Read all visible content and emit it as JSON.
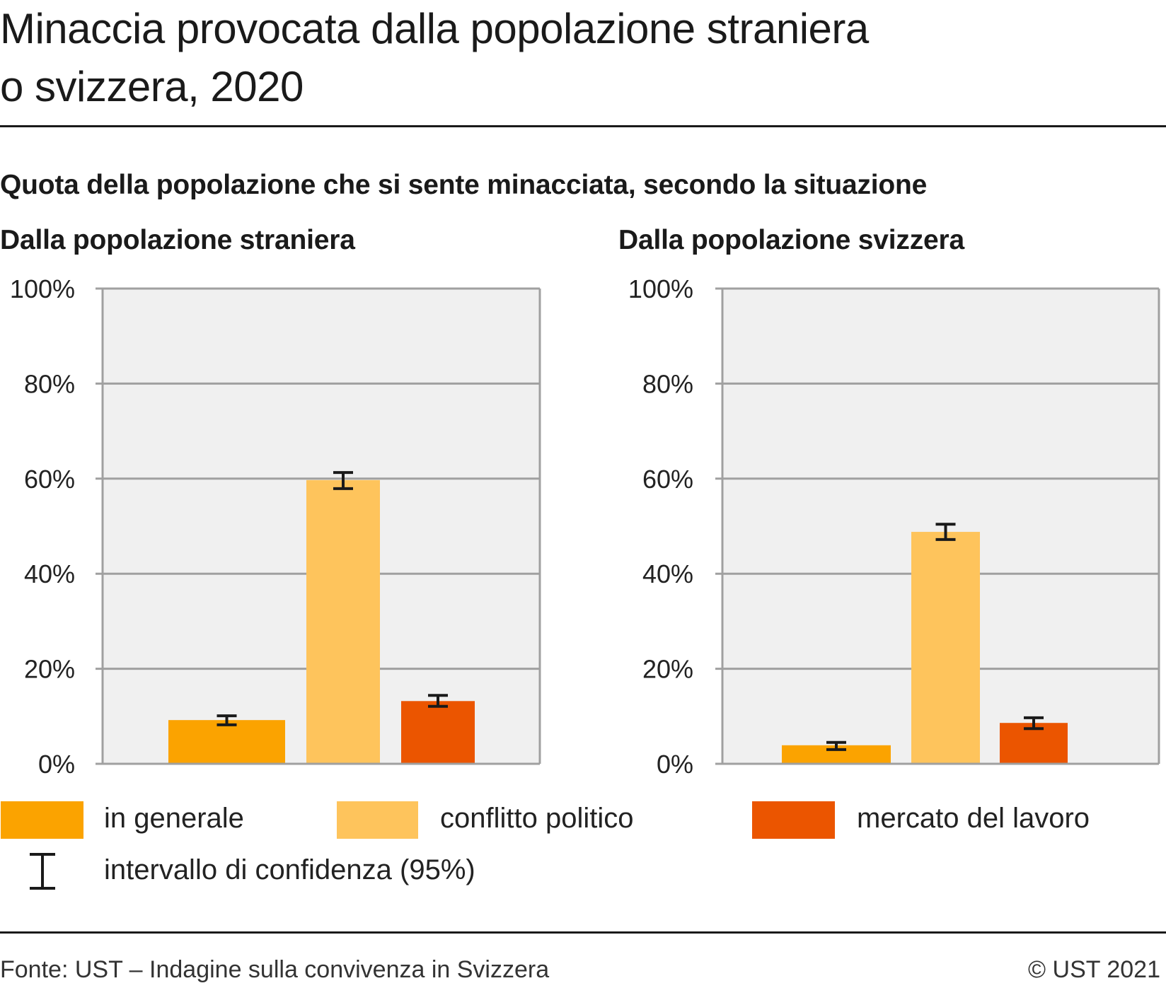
{
  "header": {
    "title_line1": "Minaccia provocata dalla popolazione straniera",
    "title_line2": "o svizzera, 2020",
    "subtitle": "Quota della popolazione che si sente minacciata, secondo la situazione"
  },
  "colors": {
    "in_generale": "#FBA300",
    "conflitto_politico": "#FEC45C",
    "mercato_del_lavoro": "#EB5500",
    "plot_background": "#F0F0F0",
    "grid": "#A0A0A0",
    "error_bar": "#1A1A1A"
  },
  "legend": {
    "items": [
      {
        "label": "in generale",
        "color": "#FBA300"
      },
      {
        "label": "conflitto politico",
        "color": "#FEC45C"
      },
      {
        "label": "mercato del lavoro",
        "color": "#EB5500"
      }
    ],
    "ci_label": "intervallo di confidenza (95%)"
  },
  "footer": {
    "source": "Fonte: UST – Indagine sulla convivenza in Svizzera",
    "copyright": "© UST 2021"
  },
  "chart_data": [
    {
      "type": "bar",
      "title": "Dalla popolazione straniera",
      "categories": [
        "in generale",
        "conflitto politico",
        "mercato del lavoro"
      ],
      "values": [
        9.2,
        59.7,
        13.2
      ],
      "ci_low": [
        8.2,
        57.9,
        12.1
      ],
      "ci_high": [
        10.1,
        61.3,
        14.4
      ],
      "unit": "%",
      "ylim": [
        0,
        100
      ],
      "yticks": [
        0,
        20,
        40,
        60,
        80,
        100
      ],
      "ytick_labels": [
        "0%",
        "20%",
        "40%",
        "60%",
        "80%",
        "100%"
      ],
      "grid": true,
      "xlabel": "",
      "ylabel": ""
    },
    {
      "type": "bar",
      "title": "Dalla popolazione svizzera",
      "categories": [
        "in generale",
        "conflitto politico",
        "mercato del lavoro"
      ],
      "values": [
        3.9,
        48.8,
        8.6
      ],
      "ci_low": [
        3.0,
        47.2,
        7.4
      ],
      "ci_high": [
        4.5,
        50.4,
        9.7
      ],
      "unit": "%",
      "ylim": [
        0,
        100
      ],
      "yticks": [
        0,
        20,
        40,
        60,
        80,
        100
      ],
      "ytick_labels": [
        "0%",
        "20%",
        "40%",
        "60%",
        "80%",
        "100%"
      ],
      "grid": true,
      "xlabel": "",
      "ylabel": ""
    }
  ]
}
